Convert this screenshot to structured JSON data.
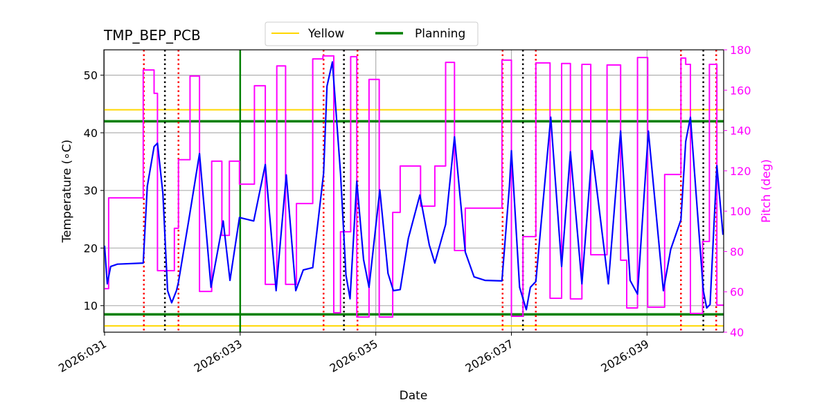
{
  "chart_data": {
    "type": "line",
    "title": "TMP_BEP_PCB",
    "xlabel": "Date",
    "ylabel": "Temperature (∘C)",
    "y2label": "Pitch (deg)",
    "xlim": [
      30.99,
      40.13
    ],
    "ylim": [
      5.4,
      54.4
    ],
    "y2lim": [
      40,
      180
    ],
    "xticks": [
      {
        "value": 31,
        "label": "2026:031"
      },
      {
        "value": 33,
        "label": "2026:033"
      },
      {
        "value": 35,
        "label": "2026:035"
      },
      {
        "value": 37,
        "label": "2026:037"
      },
      {
        "value": 39,
        "label": "2026:039"
      }
    ],
    "yticks": [
      10,
      20,
      30,
      40,
      50
    ],
    "y2ticks": [
      40,
      60,
      80,
      100,
      120,
      140,
      160,
      180
    ],
    "grid": true,
    "legend": {
      "placement": "top-center",
      "entries": [
        {
          "label": "Yellow",
          "color": "#FFD700"
        },
        {
          "label": "Planning",
          "color": "#008000"
        }
      ]
    },
    "colors": {
      "temperature": "#0000FF",
      "pitch": "#FF00FF",
      "yellow": "#FFD700",
      "planning": "#008000",
      "red_marker": "#FF0000",
      "black_marker": "#000000",
      "grid": "#B0B0B0"
    },
    "limits": {
      "yellow": [
        44,
        6.5
      ],
      "planning": [
        42,
        8.5
      ]
    },
    "planning_vertical": [
      33.0
    ],
    "red_markers": [
      31.58,
      32.09,
      34.23,
      34.73,
      36.87,
      37.36,
      39.5,
      40.02
    ],
    "black_markers": [
      31.89,
      34.53,
      37.17,
      39.83
    ],
    "series": [
      {
        "name": "Temperature",
        "axis": "left",
        "style": "line",
        "points": [
          [
            31.0,
            20.4
          ],
          [
            31.04,
            13.8
          ],
          [
            31.09,
            16.8
          ],
          [
            31.19,
            17.2
          ],
          [
            31.57,
            17.4
          ],
          [
            31.63,
            30.7
          ],
          [
            31.73,
            37.6
          ],
          [
            31.78,
            38.2
          ],
          [
            31.86,
            29.5
          ],
          [
            31.93,
            12.6
          ],
          [
            31.99,
            10.5
          ],
          [
            32.06,
            12.6
          ],
          [
            32.09,
            14.1
          ],
          [
            32.24,
            24.7
          ],
          [
            32.4,
            36.4
          ],
          [
            32.57,
            13.2
          ],
          [
            32.75,
            24.7
          ],
          [
            32.85,
            14.4
          ],
          [
            32.99,
            25.3
          ],
          [
            33.2,
            24.7
          ],
          [
            33.37,
            34.5
          ],
          [
            33.53,
            12.6
          ],
          [
            33.68,
            32.7
          ],
          [
            33.82,
            12.6
          ],
          [
            33.93,
            16.2
          ],
          [
            34.07,
            16.6
          ],
          [
            34.23,
            33.0
          ],
          [
            34.28,
            48.1
          ],
          [
            34.36,
            52.3
          ],
          [
            34.48,
            33.0
          ],
          [
            34.56,
            15.3
          ],
          [
            34.62,
            11.2
          ],
          [
            34.72,
            31.6
          ],
          [
            34.82,
            18.0
          ],
          [
            34.9,
            13.2
          ],
          [
            35.06,
            30.1
          ],
          [
            35.18,
            15.6
          ],
          [
            35.26,
            12.6
          ],
          [
            35.36,
            12.8
          ],
          [
            35.48,
            21.7
          ],
          [
            35.65,
            29.2
          ],
          [
            35.79,
            20.5
          ],
          [
            35.87,
            17.4
          ],
          [
            36.03,
            24.1
          ],
          [
            36.16,
            39.3
          ],
          [
            36.32,
            19.3
          ],
          [
            36.45,
            15.0
          ],
          [
            36.61,
            14.4
          ],
          [
            36.86,
            14.3
          ],
          [
            36.97,
            30.7
          ],
          [
            37.0,
            36.9
          ],
          [
            37.12,
            13.2
          ],
          [
            37.22,
            9.3
          ],
          [
            37.28,
            13.2
          ],
          [
            37.36,
            14.2
          ],
          [
            37.58,
            42.7
          ],
          [
            37.74,
            16.8
          ],
          [
            37.87,
            36.7
          ],
          [
            38.04,
            13.8
          ],
          [
            38.19,
            36.9
          ],
          [
            38.43,
            13.8
          ],
          [
            38.61,
            40.3
          ],
          [
            38.75,
            14.4
          ],
          [
            38.86,
            12.0
          ],
          [
            39.02,
            40.3
          ],
          [
            39.24,
            12.6
          ],
          [
            39.35,
            19.8
          ],
          [
            39.5,
            24.9
          ],
          [
            39.57,
            38.5
          ],
          [
            39.64,
            42.7
          ],
          [
            39.83,
            12.6
          ],
          [
            39.88,
            9.6
          ],
          [
            39.93,
            10.2
          ],
          [
            40.03,
            34.3
          ],
          [
            40.12,
            22.3
          ]
        ]
      },
      {
        "name": "Pitch",
        "axis": "right",
        "style": "step-post",
        "end": 40.13,
        "points": [
          [
            31.0,
            61.6
          ],
          [
            31.06,
            106.6
          ],
          [
            31.57,
            170
          ],
          [
            31.73,
            158.4
          ],
          [
            31.78,
            70.5
          ],
          [
            32.03,
            91.5
          ],
          [
            32.09,
            125.5
          ],
          [
            32.26,
            167
          ],
          [
            32.4,
            60.2
          ],
          [
            32.58,
            124.8
          ],
          [
            32.73,
            88
          ],
          [
            32.84,
            124.8
          ],
          [
            32.99,
            113.4
          ],
          [
            33.21,
            162.2
          ],
          [
            33.37,
            63.7
          ],
          [
            33.54,
            172
          ],
          [
            33.67,
            63.7
          ],
          [
            33.83,
            103.8
          ],
          [
            34.07,
            175.5
          ],
          [
            34.22,
            177
          ],
          [
            34.38,
            49.6
          ],
          [
            34.48,
            89.8
          ],
          [
            34.63,
            176.6
          ],
          [
            34.72,
            47.5
          ],
          [
            34.9,
            165.3
          ],
          [
            35.05,
            47.5
          ],
          [
            35.25,
            99.4
          ],
          [
            35.36,
            122.4
          ],
          [
            35.66,
            102.5
          ],
          [
            35.87,
            122.4
          ],
          [
            36.03,
            173.8
          ],
          [
            36.16,
            80.5
          ],
          [
            36.32,
            101.5
          ],
          [
            36.86,
            174.9
          ],
          [
            37.0,
            47.9
          ],
          [
            37.17,
            87.4
          ],
          [
            37.36,
            173.5
          ],
          [
            37.57,
            56.8
          ],
          [
            37.74,
            173.2
          ],
          [
            37.87,
            56.5
          ],
          [
            38.04,
            172.8
          ],
          [
            38.17,
            78.4
          ],
          [
            38.41,
            172.5
          ],
          [
            38.61,
            75.7
          ],
          [
            38.7,
            52
          ],
          [
            38.86,
            176.2
          ],
          [
            39.01,
            52.4
          ],
          [
            39.26,
            118.2
          ],
          [
            39.5,
            175.9
          ],
          [
            39.57,
            172.8
          ],
          [
            39.64,
            49.3
          ],
          [
            39.82,
            85
          ],
          [
            39.92,
            172.8
          ],
          [
            40.03,
            53.4
          ]
        ]
      }
    ]
  }
}
